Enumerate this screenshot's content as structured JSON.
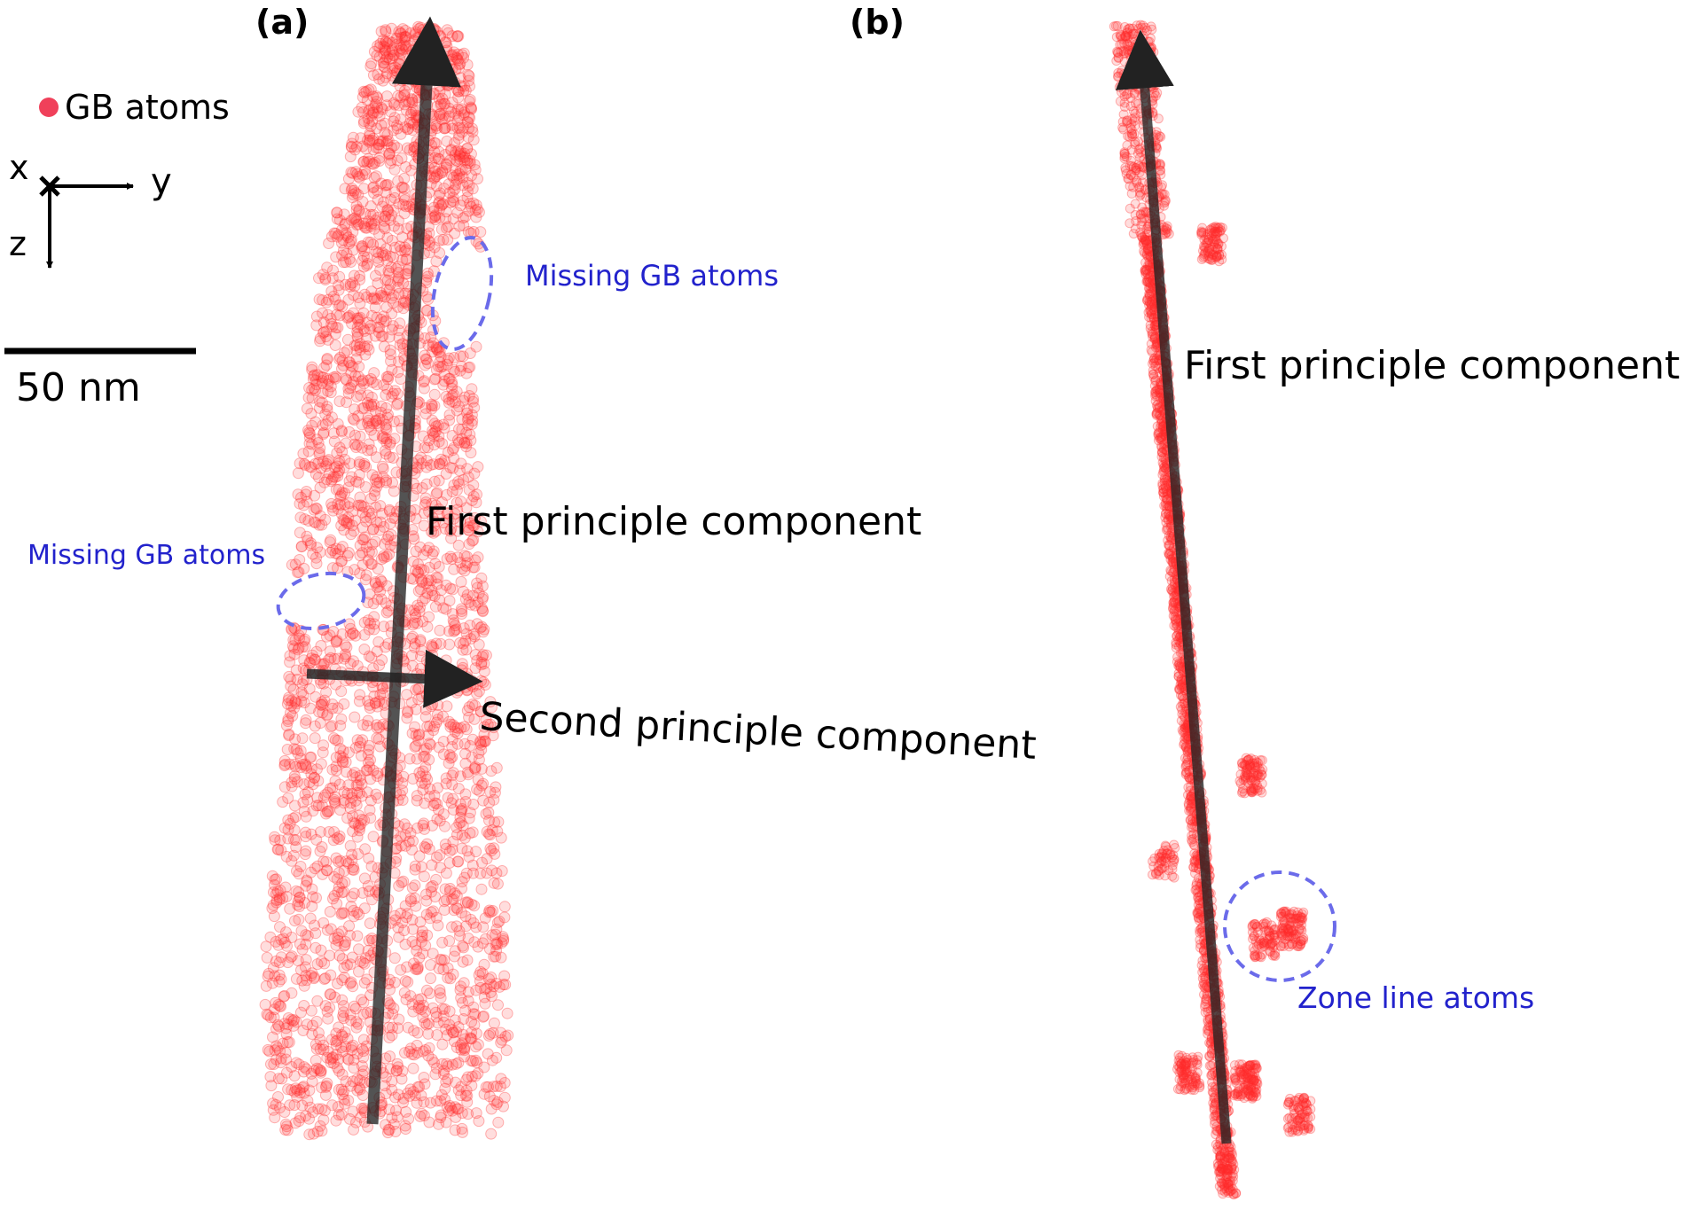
{
  "panel_a": {
    "label": "(a)",
    "legend_text": "GB atoms",
    "axis_x": "x",
    "axis_y": "y",
    "axis_z": "z",
    "scale_bar_text": "50 nm",
    "first_pc_label": "First principle component",
    "second_pc_label": "Second principle component",
    "missing_label_right": "Missing GB atoms",
    "missing_label_left": "Missing GB atoms"
  },
  "panel_b": {
    "label": "(b)",
    "first_pc_label": "First principle component",
    "zone_line_label": "Zone line atoms"
  },
  "colors": {
    "atom": "#ff2a2a",
    "legend_dot": "#f0405a",
    "annotation_blue": "#2222cc",
    "dashed_ellipse": "#6b6bea",
    "arrow": "#222222"
  }
}
